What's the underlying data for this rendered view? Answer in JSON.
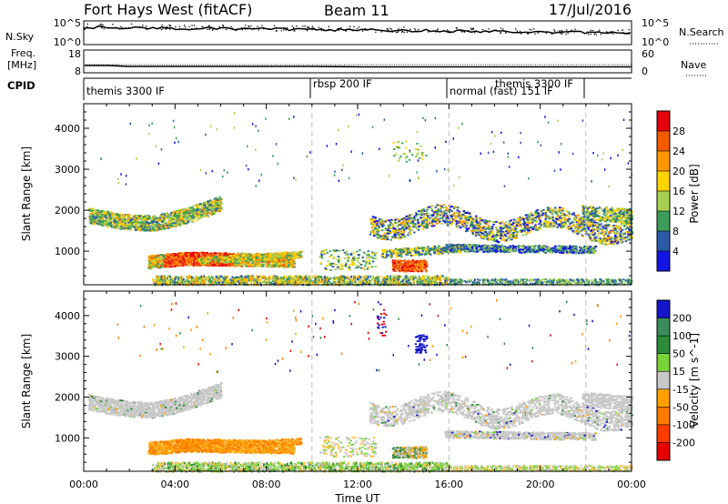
{
  "header": {
    "station": "Fort Hays West (fitACF)",
    "beam": "Beam 11",
    "date": "17/Jul/2016"
  },
  "noise_panel": {
    "left_label": "N.Sky",
    "right_label": "N.Search",
    "left_ticks": [
      "10^5",
      "10^0"
    ],
    "right_ticks": [
      "10^5",
      "10^0"
    ]
  },
  "freq_panel": {
    "left_label_line1": "Freq.",
    "left_label_line2": "[MHz]",
    "right_label": "Nave",
    "left_ticks": [
      "18",
      "8"
    ],
    "right_ticks": [
      "60",
      "0"
    ]
  },
  "cpid_panel": {
    "label": "CPID",
    "segments": [
      {
        "name": "themis 3300 IF",
        "start_hour": 0,
        "end_hour": 10
      },
      {
        "name": "rbsp 200 IF",
        "start_hour": 10,
        "end_hour": 16
      },
      {
        "name": "normal (fast) 151 IF",
        "start_hour": 16,
        "end_hour": 22
      },
      {
        "name": "themis 3300 IF",
        "start_hour": 18.2,
        "end_hour": 22
      }
    ]
  },
  "power_colorbar": {
    "title": "Power [dB]",
    "ticks": [
      "28",
      "24",
      "20",
      "16",
      "12",
      "8",
      "4"
    ],
    "colors": [
      "#e6000c",
      "#f25a00",
      "#ff9800",
      "#ffd400",
      "#a8d050",
      "#3d9e5c",
      "#2b5aa8",
      "#1414e6"
    ]
  },
  "velocity_colorbar": {
    "title": "Velocity [m s^-1]",
    "ticks": [
      "200",
      "100",
      "50",
      "15",
      "-15",
      "-50",
      "-100",
      "-200"
    ],
    "colors": [
      "#1414c8",
      "#3a8c5a",
      "#2c8c3c",
      "#7ad23a",
      "#c8c8c8",
      "#ffa000",
      "#ff7a00",
      "#ff3c00",
      "#e60000"
    ]
  },
  "chart_data": [
    {
      "type": "heatmap",
      "title": "",
      "ylabel": "Slant Range [km]",
      "xlabel": "",
      "xlim": [
        0,
        24
      ],
      "ylim": [
        180,
        4600
      ],
      "y_ticks": [
        1000,
        2000,
        3000,
        4000
      ],
      "value": "Power [dB]",
      "regions": [
        {
          "hours": [
            0.2,
            6.0
          ],
          "range_km": [
            1550,
            2300
          ],
          "level": "12-20 dB"
        },
        {
          "hours": [
            3.0,
            9.2
          ],
          "range_km": [
            500,
            900
          ],
          "level": "16-28 dB"
        },
        {
          "hours": [
            10.3,
            12.8
          ],
          "range_km": [
            550,
            1050
          ],
          "level": "8-16 dB"
        },
        {
          "hours": [
            12.5,
            24.0
          ],
          "range_km": [
            1250,
            2200
          ],
          "level": "8-20 dB"
        },
        {
          "hours": [
            13.5,
            15.0
          ],
          "range_km": [
            500,
            800
          ],
          "level": "16-28 dB"
        },
        {
          "hours": [
            15.8,
            22.4
          ],
          "range_km": [
            950,
            1200
          ],
          "level": "4-16 dB"
        }
      ]
    },
    {
      "type": "heatmap",
      "title": "",
      "ylabel": "Slant Range [km]",
      "xlabel": "Time UT",
      "xlim": [
        0,
        24
      ],
      "ylim": [
        180,
        4600
      ],
      "y_ticks": [
        1000,
        2000,
        3000,
        4000
      ],
      "x_ticks": [
        "00:00",
        "04:00",
        "08:00",
        "12:00",
        "16:00",
        "20:00",
        "00:00"
      ],
      "value": "Velocity [m s^-1]",
      "regions": [
        {
          "hours": [
            0.2,
            6.0
          ],
          "range_km": [
            1550,
            2300
          ],
          "level": "-15 to 15"
        },
        {
          "hours": [
            3.0,
            9.2
          ],
          "range_km": [
            500,
            900
          ],
          "level": "-50 to -15"
        },
        {
          "hours": [
            10.3,
            12.8
          ],
          "range_km": [
            550,
            1050
          ],
          "level": "-15 to 15"
        },
        {
          "hours": [
            12.5,
            24.0
          ],
          "range_km": [
            1250,
            2200
          ],
          "level": "-15 to 15"
        },
        {
          "hours": [
            14.5,
            15.0
          ],
          "range_km": [
            3100,
            3550
          ],
          "level": "100 to 200"
        }
      ]
    }
  ]
}
